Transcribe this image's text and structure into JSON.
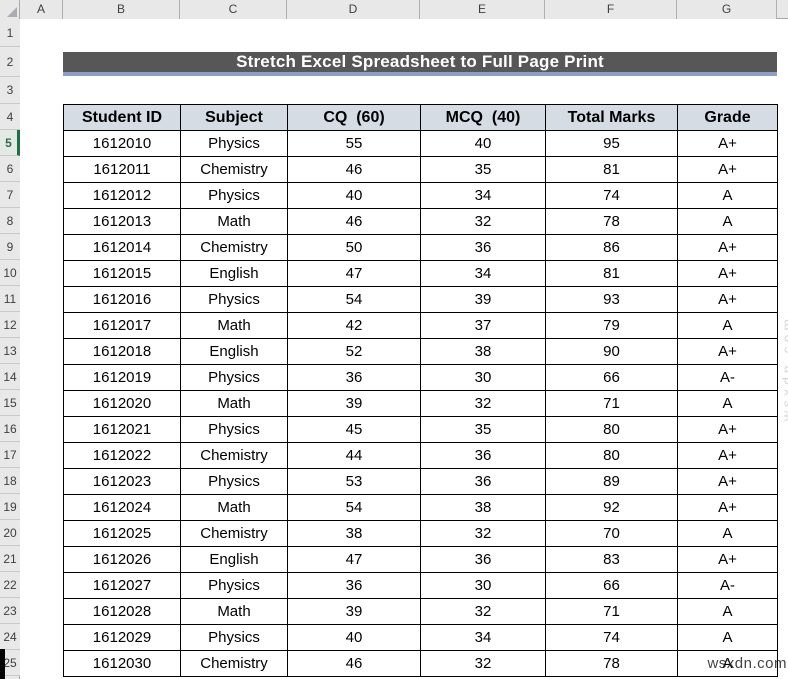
{
  "sheet": {
    "column_letters": [
      "A",
      "B",
      "C",
      "D",
      "E",
      "F",
      "G"
    ],
    "row_numbers": [
      "1",
      "2",
      "3",
      "4",
      "5",
      "6",
      "7",
      "8",
      "9",
      "10",
      "11",
      "12",
      "13",
      "14",
      "15",
      "16",
      "17",
      "18",
      "19",
      "20",
      "21",
      "22",
      "23",
      "24",
      "25"
    ],
    "active_row": "5"
  },
  "title_banner": {
    "text": "Stretch Excel Spreadsheet to Full Page Print"
  },
  "table": {
    "headers": [
      "Student ID",
      "Subject",
      "CQ  (60)",
      "MCQ  (40)",
      "Total Marks",
      "Grade"
    ],
    "rows": [
      [
        "1612010",
        "Physics",
        "55",
        "40",
        "95",
        "A+"
      ],
      [
        "1612011",
        "Chemistry",
        "46",
        "35",
        "81",
        "A+"
      ],
      [
        "1612012",
        "Physics",
        "40",
        "34",
        "74",
        "A"
      ],
      [
        "1612013",
        "Math",
        "46",
        "32",
        "78",
        "A"
      ],
      [
        "1612014",
        "Chemistry",
        "50",
        "36",
        "86",
        "A+"
      ],
      [
        "1612015",
        "English",
        "47",
        "34",
        "81",
        "A+"
      ],
      [
        "1612016",
        "Physics",
        "54",
        "39",
        "93",
        "A+"
      ],
      [
        "1612017",
        "Math",
        "42",
        "37",
        "79",
        "A"
      ],
      [
        "1612018",
        "English",
        "52",
        "38",
        "90",
        "A+"
      ],
      [
        "1612019",
        "Physics",
        "36",
        "30",
        "66",
        "A-"
      ],
      [
        "1612020",
        "Math",
        "39",
        "32",
        "71",
        "A"
      ],
      [
        "1612021",
        "Physics",
        "45",
        "35",
        "80",
        "A+"
      ],
      [
        "1612022",
        "Chemistry",
        "44",
        "36",
        "80",
        "A+"
      ],
      [
        "1612023",
        "Physics",
        "53",
        "36",
        "89",
        "A+"
      ],
      [
        "1612024",
        "Math",
        "54",
        "38",
        "92",
        "A+"
      ],
      [
        "1612025",
        "Chemistry",
        "38",
        "32",
        "70",
        "A"
      ],
      [
        "1612026",
        "English",
        "47",
        "36",
        "83",
        "A+"
      ],
      [
        "1612027",
        "Physics",
        "36",
        "30",
        "66",
        "A-"
      ],
      [
        "1612028",
        "Math",
        "39",
        "32",
        "71",
        "A"
      ],
      [
        "1612029",
        "Physics",
        "40",
        "34",
        "74",
        "A"
      ],
      [
        "1612030",
        "Chemistry",
        "46",
        "32",
        "78",
        "A"
      ]
    ]
  },
  "watermarks": {
    "bottom_right": "wsxdn.com",
    "right_edge": "wsxdn.com"
  },
  "colors": {
    "title_bar": "#575757",
    "title_underline": "#8e9fc5",
    "table_header_fill": "#d6dce4",
    "row_select_accent": "#1e7145",
    "header_strip_bg": "#e8e8e8"
  }
}
